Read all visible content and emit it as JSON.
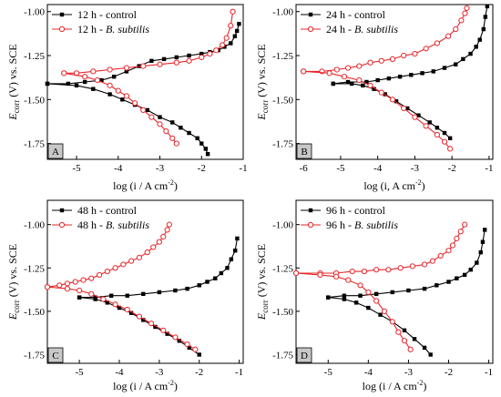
{
  "figure": {
    "colors": {
      "control": "#000000",
      "subtilis": "#e8262b",
      "tag_fill": "#c8c8c8"
    }
  },
  "chart_data": [
    {
      "type": "line",
      "panel_label": "A",
      "xlabel": "log (i / A cm-2)",
      "ylabel": "Ecorr (V) vs. SCE",
      "xlim": [
        -5.7,
        -1.0
      ],
      "ylim": [
        -1.84,
        -0.96
      ],
      "xticks": [
        -5,
        -4,
        -3,
        -2,
        -1
      ],
      "yticks": [
        -1.75,
        -1.5,
        -1.25,
        -1.0
      ],
      "xtick_labels": [
        "-5",
        "-4",
        "-3",
        "-2",
        "-1"
      ],
      "ytick_labels": [
        "-1.75",
        "-1.50",
        "-1.25",
        "-1.00"
      ],
      "legend_position": "top-left",
      "series": [
        {
          "name": "12 h - control",
          "label_plain": "12 h - control",
          "label_italic": "",
          "marker": "square",
          "color": "#000000",
          "x": [
            -1.1,
            -1.15,
            -1.2,
            -1.3,
            -1.45,
            -1.6,
            -1.8,
            -2.0,
            -2.3,
            -2.6,
            -2.9,
            -3.2,
            -3.5,
            -3.8,
            -4.1,
            -4.4,
            -4.8,
            -5.2,
            -5.7
          ],
          "y": [
            -1.07,
            -1.11,
            -1.14,
            -1.18,
            -1.2,
            -1.22,
            -1.23,
            -1.24,
            -1.25,
            -1.26,
            -1.27,
            -1.28,
            -1.31,
            -1.34,
            -1.37,
            -1.39,
            -1.4,
            -1.41,
            -1.41
          ]
        },
        {
          "name": "",
          "marker": "square",
          "color": "#000000",
          "x": [
            -5.7,
            -5.0,
            -4.6,
            -4.2,
            -3.9,
            -3.6,
            -3.3,
            -3.0,
            -2.7,
            -2.5,
            -2.3,
            -2.1,
            -2.0,
            -1.9,
            -1.85
          ],
          "y": [
            -1.41,
            -1.42,
            -1.44,
            -1.47,
            -1.5,
            -1.53,
            -1.56,
            -1.6,
            -1.63,
            -1.66,
            -1.69,
            -1.72,
            -1.75,
            -1.78,
            -1.81
          ]
        },
        {
          "name": "12 h - B. subtilis",
          "label_plain": "12 h - ",
          "label_italic": "B. subtilis",
          "marker": "circle",
          "color": "#e8262b",
          "x": [
            -1.25,
            -1.3,
            -1.4,
            -1.5,
            -1.65,
            -1.8,
            -2.0,
            -2.3,
            -2.6,
            -3.0,
            -3.4,
            -3.8,
            -4.2,
            -4.6,
            -5.0,
            -5.3
          ],
          "y": [
            -1.0,
            -1.08,
            -1.15,
            -1.19,
            -1.22,
            -1.24,
            -1.26,
            -1.28,
            -1.29,
            -1.3,
            -1.31,
            -1.32,
            -1.33,
            -1.34,
            -1.35,
            -1.35
          ]
        },
        {
          "name": "",
          "marker": "circle",
          "color": "#e8262b",
          "x": [
            -5.3,
            -4.8,
            -4.5,
            -4.2,
            -4.0,
            -3.8,
            -3.6,
            -3.4,
            -3.2,
            -3.0,
            -2.85,
            -2.7,
            -2.6
          ],
          "y": [
            -1.35,
            -1.37,
            -1.39,
            -1.42,
            -1.45,
            -1.48,
            -1.52,
            -1.56,
            -1.6,
            -1.64,
            -1.68,
            -1.72,
            -1.75
          ]
        }
      ]
    },
    {
      "type": "line",
      "panel_label": "B",
      "xlabel": "log (i, A cm-2)",
      "ylabel": "Ecorr (V) vs. SCE",
      "xlim": [
        -6.2,
        -0.9
      ],
      "ylim": [
        -1.84,
        -0.96
      ],
      "xticks": [
        -6,
        -5,
        -4,
        -3,
        -2,
        -1
      ],
      "yticks": [
        -1.75,
        -1.5,
        -1.25,
        -1.0
      ],
      "xtick_labels": [
        "-6",
        "-5",
        "-4",
        "-3",
        "-2",
        "-1"
      ],
      "ytick_labels": [
        "-1.75",
        "-1.50",
        "-1.25",
        "-1.00"
      ],
      "legend_position": "top-left",
      "series": [
        {
          "name": "24 h - control",
          "label_plain": "24 h - control",
          "label_italic": "",
          "marker": "square",
          "color": "#000000",
          "x": [
            -1.05,
            -1.1,
            -1.15,
            -1.25,
            -1.35,
            -1.5,
            -1.7,
            -1.9,
            -2.2,
            -2.5,
            -2.8,
            -3.1,
            -3.4,
            -3.7,
            -4.0,
            -4.3,
            -4.8,
            -5.2
          ],
          "y": [
            -0.97,
            -1.03,
            -1.1,
            -1.16,
            -1.2,
            -1.24,
            -1.27,
            -1.3,
            -1.32,
            -1.34,
            -1.35,
            -1.36,
            -1.37,
            -1.38,
            -1.39,
            -1.4,
            -1.4,
            -1.41
          ]
        },
        {
          "name": "",
          "marker": "square",
          "color": "#000000",
          "x": [
            -5.2,
            -4.7,
            -4.4,
            -4.1,
            -3.8,
            -3.5,
            -3.2,
            -2.9,
            -2.6,
            -2.4,
            -2.2,
            -2.05
          ],
          "y": [
            -1.41,
            -1.41,
            -1.42,
            -1.44,
            -1.47,
            -1.51,
            -1.55,
            -1.59,
            -1.63,
            -1.66,
            -1.69,
            -1.72
          ]
        },
        {
          "name": "24 h - B. subtilis",
          "label_plain": "24 h - ",
          "label_italic": "B. subtilis",
          "marker": "circle",
          "color": "#e8262b",
          "x": [
            -1.6,
            -1.65,
            -1.75,
            -1.9,
            -2.1,
            -2.4,
            -2.7,
            -3.0,
            -3.3,
            -3.6,
            -3.9,
            -4.2,
            -4.5,
            -4.8,
            -5.1,
            -5.5,
            -6.0
          ],
          "y": [
            -0.98,
            -1.01,
            -1.05,
            -1.1,
            -1.14,
            -1.18,
            -1.21,
            -1.24,
            -1.25,
            -1.27,
            -1.28,
            -1.29,
            -1.31,
            -1.32,
            -1.33,
            -1.34,
            -1.34
          ]
        },
        {
          "name": "",
          "marker": "circle",
          "color": "#e8262b",
          "x": [
            -6.0,
            -5.3,
            -4.9,
            -4.5,
            -4.2,
            -3.9,
            -3.6,
            -3.3,
            -3.0,
            -2.7,
            -2.4,
            -2.2,
            -2.05
          ],
          "y": [
            -1.34,
            -1.35,
            -1.37,
            -1.39,
            -1.42,
            -1.46,
            -1.5,
            -1.55,
            -1.6,
            -1.65,
            -1.7,
            -1.74,
            -1.78
          ]
        }
      ]
    },
    {
      "type": "line",
      "panel_label": "C",
      "xlabel": "log (i / A cm-2)",
      "ylabel": "Ecorr (V) vs. SCE",
      "xlim": [
        -5.8,
        -0.9
      ],
      "ylim": [
        -1.8,
        -0.86
      ],
      "xticks": [
        -5,
        -4,
        -3,
        -2,
        -1
      ],
      "yticks": [
        -1.75,
        -1.5,
        -1.25,
        -1.0
      ],
      "xtick_labels": [
        "-5",
        "-4",
        "-3",
        "-2",
        "-1"
      ],
      "ytick_labels": [
        "-1.75",
        "-1.50",
        "-1.25",
        "-1.00"
      ],
      "legend_position": "top-left",
      "series": [
        {
          "name": "48 h - control",
          "label_plain": "48 h - control",
          "label_italic": "",
          "marker": "square",
          "color": "#000000",
          "x": [
            -1.05,
            -1.1,
            -1.2,
            -1.3,
            -1.45,
            -1.6,
            -1.8,
            -2.0,
            -2.3,
            -2.6,
            -3.0,
            -3.4,
            -3.8,
            -4.2,
            -4.6,
            -5.0
          ],
          "y": [
            -1.08,
            -1.15,
            -1.2,
            -1.25,
            -1.28,
            -1.31,
            -1.33,
            -1.35,
            -1.37,
            -1.38,
            -1.39,
            -1.4,
            -1.41,
            -1.41,
            -1.42,
            -1.42
          ]
        },
        {
          "name": "",
          "marker": "square",
          "color": "#000000",
          "x": [
            -5.0,
            -4.6,
            -4.3,
            -4.0,
            -3.7,
            -3.4,
            -3.1,
            -2.8,
            -2.5,
            -2.25,
            -2.0
          ],
          "y": [
            -1.42,
            -1.43,
            -1.45,
            -1.48,
            -1.51,
            -1.55,
            -1.59,
            -1.63,
            -1.67,
            -1.71,
            -1.75
          ]
        },
        {
          "name": "48 h - B. subtilis",
          "label_plain": "48 h - ",
          "label_italic": "B. subtilis",
          "marker": "circle",
          "color": "#e8262b",
          "x": [
            -2.75,
            -2.8,
            -2.9,
            -3.0,
            -3.15,
            -3.3,
            -3.5,
            -3.7,
            -3.9,
            -4.1,
            -4.3,
            -4.5,
            -4.7,
            -4.9,
            -5.1,
            -5.3,
            -5.5,
            -5.8
          ],
          "y": [
            -1.0,
            -1.03,
            -1.07,
            -1.1,
            -1.13,
            -1.16,
            -1.19,
            -1.21,
            -1.23,
            -1.25,
            -1.27,
            -1.29,
            -1.31,
            -1.32,
            -1.33,
            -1.34,
            -1.35,
            -1.36
          ]
        },
        {
          "name": "",
          "marker": "circle",
          "color": "#e8262b",
          "x": [
            -5.8,
            -5.3,
            -5.0,
            -4.7,
            -4.4,
            -4.1,
            -3.8,
            -3.5,
            -3.2,
            -2.9,
            -2.6,
            -2.3,
            -2.1
          ],
          "y": [
            -1.36,
            -1.37,
            -1.38,
            -1.4,
            -1.43,
            -1.46,
            -1.49,
            -1.53,
            -1.57,
            -1.61,
            -1.65,
            -1.69,
            -1.72
          ]
        }
      ]
    },
    {
      "type": "line",
      "panel_label": "D",
      "xlabel": "log (i / A cm-2)",
      "ylabel": "Ecorr (V) vs. SCE",
      "xlim": [
        -5.8,
        -0.9
      ],
      "ylim": [
        -1.8,
        -0.86
      ],
      "xticks": [
        -5,
        -4,
        -3,
        -2,
        -1
      ],
      "yticks": [
        -1.75,
        -1.5,
        -1.25,
        -1.0
      ],
      "xtick_labels": [
        "-5",
        "-4",
        "-3",
        "-2",
        "-1"
      ],
      "ytick_labels": [
        "-1.75",
        "-1.50",
        "-1.25",
        "-1.00"
      ],
      "legend_position": "top-left",
      "series": [
        {
          "name": "96 h - control",
          "label_plain": "96 h - control",
          "label_italic": "",
          "marker": "square",
          "color": "#000000",
          "x": [
            -1.1,
            -1.15,
            -1.2,
            -1.3,
            -1.45,
            -1.6,
            -1.8,
            -2.0,
            -2.3,
            -2.6,
            -3.0,
            -3.4,
            -3.8,
            -4.2,
            -4.6,
            -5.0
          ],
          "y": [
            -1.03,
            -1.1,
            -1.16,
            -1.22,
            -1.26,
            -1.29,
            -1.31,
            -1.33,
            -1.35,
            -1.37,
            -1.38,
            -1.39,
            -1.4,
            -1.41,
            -1.41,
            -1.42
          ]
        },
        {
          "name": "",
          "marker": "square",
          "color": "#000000",
          "x": [
            -5.0,
            -4.6,
            -4.3,
            -4.0,
            -3.7,
            -3.4,
            -3.1,
            -2.85,
            -2.6,
            -2.45
          ],
          "y": [
            -1.42,
            -1.43,
            -1.45,
            -1.48,
            -1.52,
            -1.56,
            -1.61,
            -1.66,
            -1.71,
            -1.75
          ]
        },
        {
          "name": "96 h - B. subtilis",
          "label_plain": "96 h - ",
          "label_italic": "B. subtilis",
          "marker": "circle",
          "color": "#e8262b",
          "x": [
            -1.6,
            -1.7,
            -1.8,
            -1.9,
            -2.0,
            -2.2,
            -2.4,
            -2.6,
            -2.9,
            -3.2,
            -3.5,
            -3.8,
            -4.1,
            -4.4,
            -4.8,
            -5.2,
            -5.8
          ],
          "y": [
            -1.0,
            -1.04,
            -1.08,
            -1.12,
            -1.15,
            -1.18,
            -1.21,
            -1.23,
            -1.24,
            -1.25,
            -1.26,
            -1.26,
            -1.27,
            -1.27,
            -1.28,
            -1.28,
            -1.28
          ]
        },
        {
          "name": "",
          "marker": "circle",
          "color": "#e8262b",
          "x": [
            -5.8,
            -5.2,
            -4.8,
            -4.5,
            -4.2,
            -4.0,
            -3.8,
            -3.6,
            -3.4,
            -3.25,
            -3.1,
            -2.95
          ],
          "y": [
            -1.28,
            -1.29,
            -1.3,
            -1.32,
            -1.35,
            -1.39,
            -1.44,
            -1.5,
            -1.56,
            -1.62,
            -1.67,
            -1.72
          ]
        }
      ]
    }
  ]
}
